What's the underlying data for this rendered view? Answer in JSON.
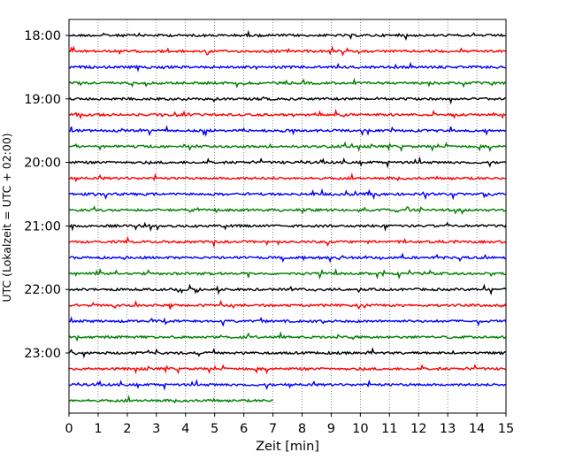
{
  "chart_data": {
    "type": "line",
    "title": "",
    "xlabel": "Zeit  [min]",
    "ylabel": "UTC (Lokalzeit = UTC + 02:00)",
    "x_ticks": [
      "0",
      "1",
      "2",
      "3",
      "4",
      "5",
      "6",
      "7",
      "8",
      "9",
      "10",
      "11",
      "12",
      "13",
      "14",
      "15"
    ],
    "x_range": [
      0,
      15
    ],
    "y_ticks": [
      "18:00",
      "19:00",
      "20:00",
      "21:00",
      "22:00",
      "23:00"
    ],
    "trace_interval_min": 15,
    "grid": "vertical dotted",
    "color_cycle": [
      "#000000",
      "#ff0000",
      "#0000ff",
      "#008000"
    ],
    "series": [
      {
        "start": "18:00",
        "end_min": 15
      },
      {
        "start": "18:15",
        "end_min": 15
      },
      {
        "start": "18:30",
        "end_min": 15
      },
      {
        "start": "18:45",
        "end_min": 15
      },
      {
        "start": "19:00",
        "end_min": 15
      },
      {
        "start": "19:15",
        "end_min": 15
      },
      {
        "start": "19:30",
        "end_min": 15
      },
      {
        "start": "19:45",
        "end_min": 15
      },
      {
        "start": "20:00",
        "end_min": 15
      },
      {
        "start": "20:15",
        "end_min": 15
      },
      {
        "start": "20:30",
        "end_min": 15
      },
      {
        "start": "20:45",
        "end_min": 15
      },
      {
        "start": "21:00",
        "end_min": 15
      },
      {
        "start": "21:15",
        "end_min": 15
      },
      {
        "start": "21:30",
        "end_min": 15
      },
      {
        "start": "21:45",
        "end_min": 15
      },
      {
        "start": "22:00",
        "end_min": 15
      },
      {
        "start": "22:15",
        "end_min": 15
      },
      {
        "start": "22:30",
        "end_min": 15
      },
      {
        "start": "22:45",
        "end_min": 15
      },
      {
        "start": "23:00",
        "end_min": 15
      },
      {
        "start": "23:15",
        "end_min": 15
      },
      {
        "start": "23:30",
        "end_min": 15
      },
      {
        "start": "23:45",
        "end_min": 7
      }
    ]
  }
}
